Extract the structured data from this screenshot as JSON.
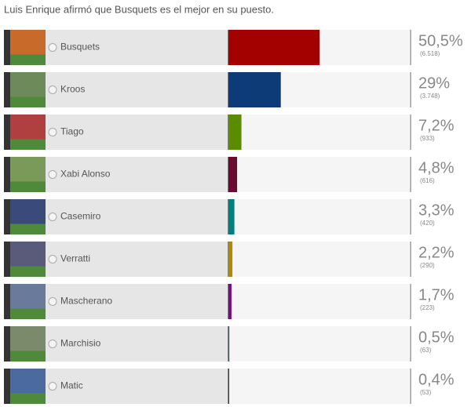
{
  "chart_data": {
    "type": "poll",
    "title": "Luis Enrique afirmó que Busquets es el mejor en su puesto.",
    "categories": [
      "Busquets",
      "Kroos",
      "Tiago",
      "Xabi Alonso",
      "Casemiro",
      "Verratti",
      "Mascherano",
      "Marchisio",
      "Matic"
    ],
    "values": [
      50.5,
      29,
      7.2,
      4.8,
      3.3,
      2.2,
      1.7,
      0.5,
      0.4
    ],
    "value_labels": [
      "50,5%",
      "29%",
      "7,2%",
      "4,8%",
      "3,3%",
      "2,2%",
      "1,7%",
      "0,5%",
      "0,4%"
    ],
    "votes": [
      6518,
      3748,
      933,
      616,
      420,
      290,
      223,
      63,
      53
    ],
    "vote_labels": [
      "(6.518)",
      "(3.748)",
      "(933)",
      "(616)",
      "(420)",
      "(290)",
      "(223)",
      "(63)",
      "(53)"
    ],
    "colors": [
      "#a30000",
      "#0c3b78",
      "#5b8c00",
      "#6c0b32",
      "#008080",
      "#b08900",
      "#7a0a85",
      "#00708c",
      "#333333"
    ],
    "xlim": [
      0,
      100
    ]
  }
}
